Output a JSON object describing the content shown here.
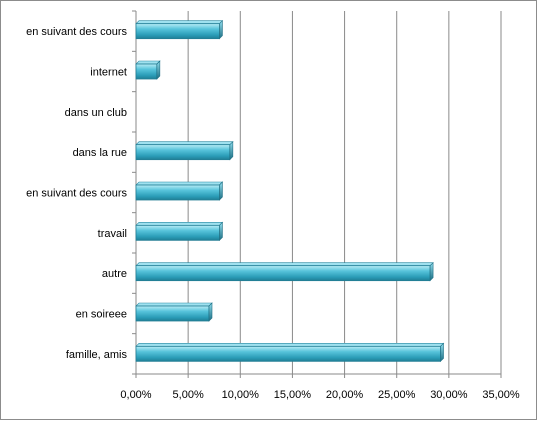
{
  "chart_data": {
    "type": "bar",
    "orientation": "horizontal",
    "categories": [
      "en suivant des cours",
      "internet",
      "dans un club",
      "dans la rue",
      "en suivant des cours",
      "travail",
      "autre",
      "en soireee",
      "famille, amis"
    ],
    "values": [
      8.0,
      2.0,
      0.0,
      9.0,
      8.0,
      8.0,
      28.2,
      7.0,
      29.2
    ],
    "xlim": [
      0,
      35
    ],
    "xticks": [
      0,
      5,
      10,
      15,
      20,
      25,
      30,
      35
    ],
    "xtick_labels": [
      "0,00%",
      "5,00%",
      "10,00%",
      "15,00%",
      "20,00%",
      "25,00%",
      "30,00%",
      "35,00%"
    ],
    "value_format": "percent",
    "grid": "vertical",
    "legend": "none",
    "bar_color": "#4bb8cf"
  }
}
